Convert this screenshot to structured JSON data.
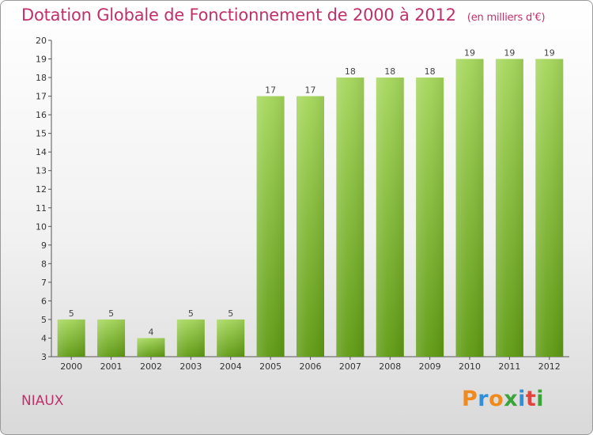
{
  "header": {
    "title": "Dotation Globale de Fonctionnement de 2000 à 2012",
    "unit": "(en milliers d'€)"
  },
  "footer": {
    "commune": "NIAUX",
    "logo_text": "Proxiti"
  },
  "colors": {
    "bar_top": "#a4d65a",
    "bar_bottom": "#5e9a12",
    "title": "#c0306a",
    "logo": [
      "#f08a1c",
      "#2f8fd8",
      "#f08a1c",
      "#3aa33a",
      "#2f8fd8",
      "#e0443c",
      "#3aa33a"
    ]
  },
  "chart_data": {
    "type": "bar",
    "title": "Dotation Globale de Fonctionnement de 2000 à 2012",
    "subtitle": "(en milliers d'€)",
    "xlabel": "",
    "ylabel": "",
    "categories": [
      "2000",
      "2001",
      "2002",
      "2003",
      "2004",
      "2005",
      "2006",
      "2007",
      "2008",
      "2009",
      "2010",
      "2011",
      "2012"
    ],
    "values": [
      5,
      5,
      4,
      5,
      5,
      17,
      17,
      18,
      18,
      18,
      19,
      19,
      19
    ],
    "value_labels": [
      "5",
      "5",
      "4",
      "5",
      "5",
      "17",
      "17",
      "18",
      "18",
      "18",
      "19",
      "19",
      "19"
    ],
    "ylim": [
      3,
      20
    ],
    "yticks": [
      3,
      4,
      5,
      6,
      7,
      8,
      9,
      10,
      11,
      12,
      13,
      14,
      15,
      16,
      17,
      18,
      19,
      20
    ],
    "grid": false,
    "legend": "none"
  }
}
